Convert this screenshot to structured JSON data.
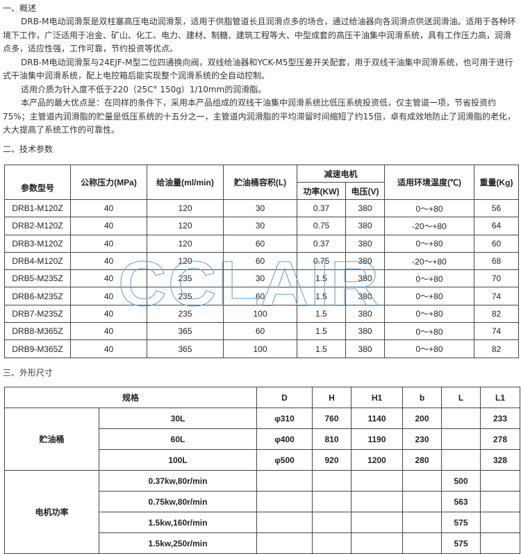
{
  "section1": {
    "title": "一、概述",
    "paragraphs": [
      "DRB-M电动润滑泵是双柱塞高压电动润滑泵，适用于供脂管道长且润滑点多的场合，通过给油器向各润滑点供送润滑油。适用于各种环境下工作，广泛适用于冶金、矿山、化工、电力、建材、制糖、建筑工程等大、中型成套的高压干油集中润滑系统，具有工作压力高，润滑点多，适应性强，工作可靠，节约投资等优点。",
      "DRB-M电动润滑泵与24EJF-M型二位四通换向阀，双线给油器和YCK-M5型压差开关配套，用于双线干油集中润滑系统，也可用于进行式干油集中润滑系统，配上电控箱后能实现整个润滑系统的全自动控制。",
      "适用介质为针入度不低于220（25C° 150g）1/10mm的润滑脂。",
      "本产品的最大优点是：在同样的条件下，采用本产品组成的双线干油集中润滑系统比低压系统投资低，仅主管道一项，节省投资约75%；主管道内润滑脂的贮量是低压系统的十五分之一，主管道内润滑脂的平均滞留时间缩短了约15倍，卓有成效地防止了润滑脂的老化，大大提高了系统工作的可靠性。"
    ]
  },
  "section2": {
    "title": "二、技术参数",
    "headers": {
      "model": "参数型号",
      "pressure": "公称压力(MPa)",
      "flow": "给油量(ml/min)",
      "tank": "贮油桶容积(L)",
      "motor": "减速电机",
      "power": "功率(KW)",
      "voltage": "电压(V)",
      "temp": "适用环境温度(℃)",
      "weight": "重量(Kg)"
    },
    "rows": [
      [
        "DRB1-M120Z",
        "40",
        "120",
        "30",
        "0.37",
        "380",
        "0～+80",
        "56"
      ],
      [
        "DRB2-M120Z",
        "40",
        "120",
        "30",
        "0.75",
        "380",
        "-20～+80",
        "64"
      ],
      [
        "DRB3-M120Z",
        "40",
        "120",
        "60",
        "0.37",
        "380",
        "0～+80",
        "60"
      ],
      [
        "DRB4-M120Z",
        "40",
        "120",
        "60",
        "0.75",
        "380",
        "-20～+80",
        "68"
      ],
      [
        "DRB5-M235Z",
        "40",
        "235",
        "30",
        "1.5",
        "380",
        "0～+80",
        "70"
      ],
      [
        "DRB6-M235Z",
        "40",
        "235",
        "60",
        "1.5",
        "380",
        "0～+80",
        "74"
      ],
      [
        "DRB7-M235Z",
        "40",
        "235",
        "100",
        "1.5",
        "380",
        "0～+80",
        "82"
      ],
      [
        "DRB8-M365Z",
        "40",
        "365",
        "60",
        "1.5",
        "380",
        "0～+80",
        "74"
      ],
      [
        "DRB9-M365Z",
        "40",
        "365",
        "100",
        "1.5",
        "380",
        "0～+80",
        "82"
      ]
    ]
  },
  "watermark": "CCLAIR",
  "section3": {
    "title": "三、外形尺寸",
    "headers": [
      "规格",
      "D",
      "H",
      "H1",
      "b",
      "L",
      "L1"
    ],
    "groups": [
      {
        "label": "贮油桶",
        "rows": [
          [
            "30L",
            "φ310",
            "760",
            "1140",
            "200",
            "",
            "233"
          ],
          [
            "60L",
            "φ400",
            "810",
            "1190",
            "230",
            "",
            "278"
          ],
          [
            "100L",
            "φ500",
            "920",
            "1200",
            "280",
            "",
            "328"
          ]
        ]
      },
      {
        "label": "电机功率",
        "rows": [
          [
            "0.37kw,80r/min",
            "",
            "",
            "",
            "",
            "500",
            ""
          ],
          [
            "0.75kw,80r/min",
            "",
            "",
            "",
            "",
            "563",
            ""
          ],
          [
            "1.5kw,160r/min",
            "",
            "",
            "",
            "",
            "575",
            ""
          ],
          [
            "1.5kw,250r/min",
            "",
            "",
            "",
            "",
            "575",
            ""
          ]
        ]
      }
    ]
  }
}
